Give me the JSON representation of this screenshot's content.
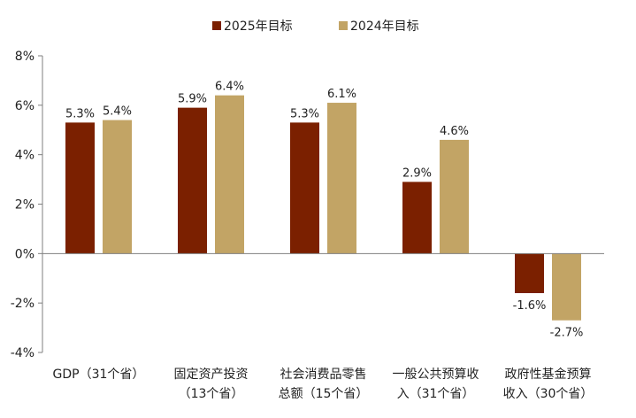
{
  "chart_data": {
    "type": "bar",
    "categories": [
      [
        "GDP（31个省）"
      ],
      [
        "固定资产投资",
        "（13个省）"
      ],
      [
        "社会消费品零售",
        "总额（15个省）"
      ],
      [
        "一般公共预算收",
        "入（31个省）"
      ],
      [
        "政府性基金预算",
        "收入（30个省）"
      ]
    ],
    "series": [
      {
        "name": "2025年目标",
        "values": [
          5.3,
          5.9,
          5.3,
          2.9,
          -1.6
        ],
        "labels": [
          "5.3%",
          "5.9%",
          "5.3%",
          "2.9%",
          "-1.6%"
        ],
        "color": "#7B2000"
      },
      {
        "name": "2024年目标",
        "values": [
          5.4,
          6.4,
          6.1,
          4.6,
          -2.7
        ],
        "labels": [
          "5.4%",
          "6.4%",
          "6.1%",
          "4.6%",
          "-2.7%"
        ],
        "color": "#C2A465"
      }
    ],
    "ylim": [
      -4,
      8
    ],
    "yticks": [
      8,
      6,
      4,
      2,
      0,
      -2,
      -4
    ],
    "ytick_labels": [
      "8%",
      "6%",
      "4%",
      "2%",
      "0%",
      "-2%",
      "-4%"
    ],
    "grid": false,
    "legend_position": "top"
  }
}
